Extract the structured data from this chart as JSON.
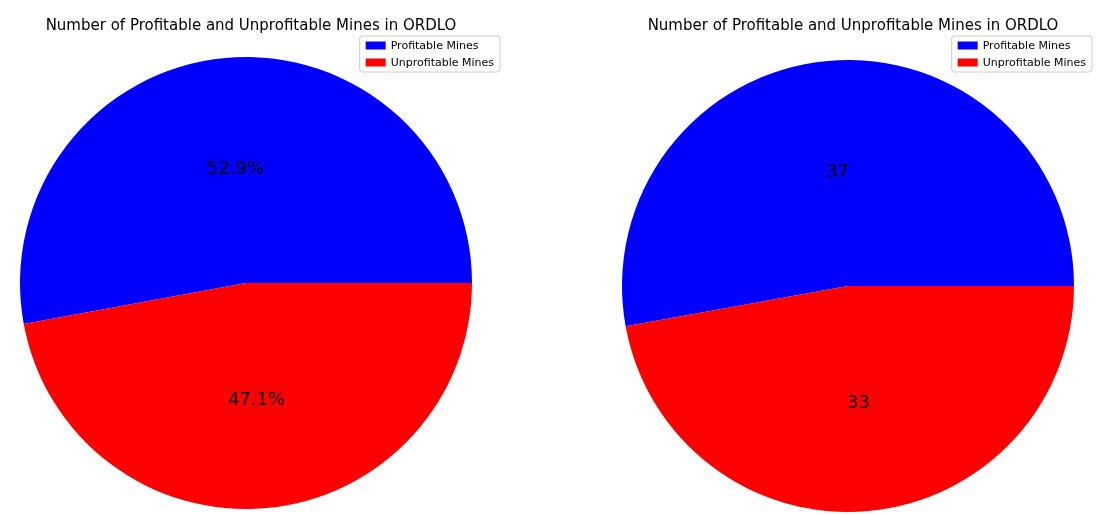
{
  "chart_data": [
    {
      "type": "pie",
      "title": "Number of Profitable and Unprofitable Mines in ORDLO",
      "categories": [
        "Profitable Mines",
        "Unprofitable Mines"
      ],
      "values": [
        52.9,
        47.1
      ],
      "colors": [
        "#0000ff",
        "#ff0000"
      ],
      "value_labels": [
        "52.9%",
        "47.1%"
      ],
      "legend": "top right"
    },
    {
      "type": "pie",
      "title": "Number of Profitable and Unprofitable Mines in ORDLO",
      "categories": [
        "Profitable Mines",
        "Unprofitable Mines"
      ],
      "values": [
        37,
        33
      ],
      "colors": [
        "#0000ff",
        "#ff0000"
      ],
      "data_labels": true,
      "legend": "top right"
    }
  ]
}
